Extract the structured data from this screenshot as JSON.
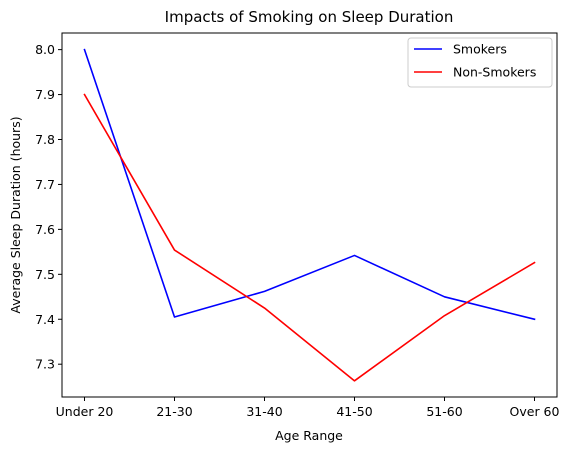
{
  "chart_data": {
    "type": "line",
    "title": "Impacts of Smoking on Sleep Duration",
    "xlabel": "Age Range",
    "ylabel": "Average Sleep Duration (hours)",
    "categories": [
      "Under 20",
      "21-30",
      "31-40",
      "41-50",
      "51-60",
      "Over 60"
    ],
    "ylim": [
      7.227,
      8.037
    ],
    "yticks": [
      7.3,
      7.4,
      7.5,
      7.6,
      7.7,
      7.8,
      7.9,
      8.0
    ],
    "grid": false,
    "legend_position": "top-right",
    "series": [
      {
        "name": "Smokers",
        "color": "#0000ff",
        "values": [
          8.0,
          7.405,
          7.462,
          7.542,
          7.45,
          7.4
        ]
      },
      {
        "name": "Non-Smokers",
        "color": "#ff0000",
        "values": [
          7.9,
          7.554,
          7.425,
          7.263,
          7.408,
          7.526
        ]
      }
    ]
  }
}
